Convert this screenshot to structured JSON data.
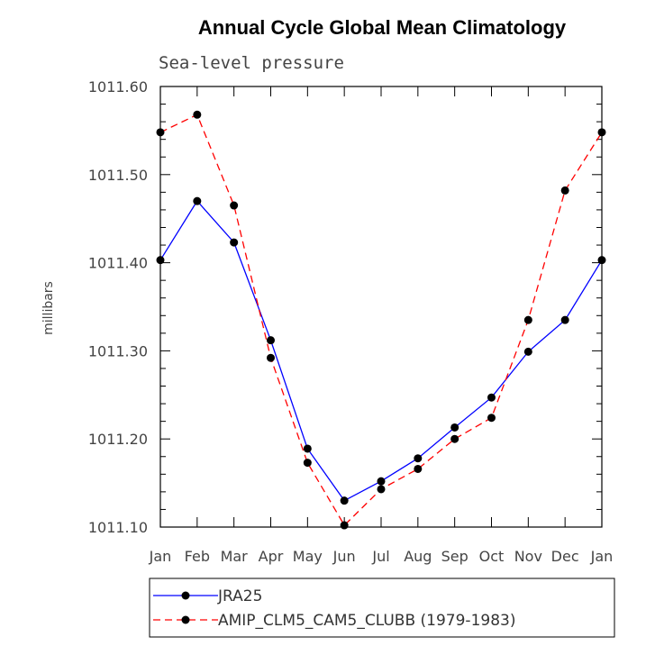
{
  "chart_data": {
    "type": "line",
    "title": "Annual Cycle Global Mean Climatology",
    "subtitle": "Sea-level pressure",
    "ylabel": "millibars",
    "xlabel": "",
    "categories": [
      "Jan",
      "Feb",
      "Mar",
      "Apr",
      "May",
      "Jun",
      "Jul",
      "Aug",
      "Sep",
      "Oct",
      "Nov",
      "Dec",
      "Jan"
    ],
    "ylim": [
      1011.1,
      1011.6
    ],
    "y_ticks": [
      1011.1,
      1011.2,
      1011.3,
      1011.4,
      1011.5,
      1011.6
    ],
    "y_tick_labels": [
      "1011.10",
      "1011.20",
      "1011.30",
      "1011.40",
      "1011.50",
      "1011.60"
    ],
    "grid": false,
    "legend_position": "bottom",
    "series": [
      {
        "name": "JRA25",
        "color": "#0000ff",
        "style": "solid",
        "values": [
          1011.403,
          1011.47,
          1011.423,
          1011.312,
          1011.189,
          1011.13,
          1011.152,
          1011.178,
          1011.213,
          1011.247,
          1011.299,
          1011.335,
          1011.403
        ]
      },
      {
        "name": "AMIP_CLM5_CAM5_CLUBB (1979-1983)",
        "color": "#ff0000",
        "style": "dashed",
        "values": [
          1011.548,
          1011.568,
          1011.465,
          1011.292,
          1011.173,
          1011.102,
          1011.143,
          1011.166,
          1011.2,
          1011.224,
          1011.335,
          1011.482,
          1011.548
        ]
      }
    ]
  }
}
